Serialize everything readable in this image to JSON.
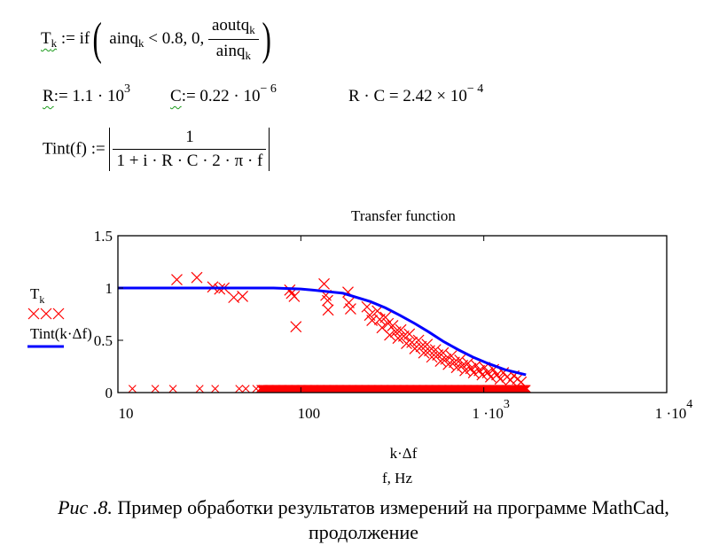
{
  "formulas": {
    "t_def": {
      "lhs": "T",
      "lhs_sub": "k",
      "assign": ":=",
      "func": "if",
      "cond_var": "ainq",
      "cond_sub": "k",
      "cond_op": "<",
      "cond_val": "0.8",
      "sep1": ",",
      "zero": "0",
      "sep2": ",",
      "num_var": "aoutq",
      "num_sub": "k",
      "den_var": "ainq",
      "den_sub": "k"
    },
    "r_def": {
      "name": "R",
      "rest": ":= 1.1 · 10",
      "exp": "3"
    },
    "c_def": {
      "name": "C",
      "rest": ":= 0.22 · 10",
      "exp": "− 6"
    },
    "rc_result": {
      "expr": "R · C = 2.42 × 10",
      "exp": "− 4"
    },
    "tint_def": {
      "lhs": "Tint(f) :=",
      "num": "1",
      "den": "1 + i · R · C · 2 · π · f"
    }
  },
  "chart_data": {
    "type": "scatter",
    "title": "Transfer function",
    "xlabel": "k·Δf",
    "xlabel2": "f, Hz",
    "xscale": "log",
    "xlim": [
      10,
      10000
    ],
    "ylim": [
      0,
      1.5
    ],
    "x_ticks": [
      {
        "value": 10,
        "label": "10",
        "exp": ""
      },
      {
        "value": 100,
        "label": "100",
        "exp": ""
      },
      {
        "value": 1000,
        "label": "1 ·10",
        "exp": "3"
      },
      {
        "value": 10000,
        "label": "1 ·10",
        "exp": "4"
      }
    ],
    "y_ticks": [
      {
        "value": 1.5,
        "label": "1.5"
      },
      {
        "value": 1,
        "label": "1"
      },
      {
        "value": 0.5,
        "label": "0.5"
      },
      {
        "value": 0,
        "label": "0"
      }
    ],
    "legend": {
      "placement": "left",
      "series1_name": "T",
      "series1_sub": "k",
      "series2_name": "Tint(k·Δf)"
    },
    "colors": {
      "scatter": "#ff0000",
      "line": "#0000ff"
    },
    "series": [
      {
        "name": "Tk",
        "kind": "scatter-x",
        "points": [
          [
            21,
            1.08
          ],
          [
            27,
            1.1
          ],
          [
            33,
            1.01
          ],
          [
            36,
            0.99
          ],
          [
            38,
            1.0
          ],
          [
            43,
            0.91
          ],
          [
            48,
            0.92
          ],
          [
            87,
            0.98
          ],
          [
            89,
            0.95
          ],
          [
            92,
            0.92
          ],
          [
            94,
            0.63
          ],
          [
            134,
            1.04
          ],
          [
            137,
            0.93
          ],
          [
            140,
            0.88
          ],
          [
            141,
            0.79
          ],
          [
            181,
            0.96
          ],
          [
            183,
            0.86
          ],
          [
            187,
            0.8
          ],
          [
            230,
            0.82
          ],
          [
            238,
            0.74
          ],
          [
            245,
            0.69
          ],
          [
            262,
            0.78
          ],
          [
            270,
            0.7
          ],
          [
            278,
            0.62
          ],
          [
            290,
            0.72
          ],
          [
            300,
            0.66
          ],
          [
            306,
            0.55
          ],
          [
            318,
            0.64
          ],
          [
            330,
            0.58
          ],
          [
            340,
            0.52
          ],
          [
            352,
            0.6
          ],
          [
            365,
            0.54
          ],
          [
            378,
            0.47
          ],
          [
            392,
            0.56
          ],
          [
            405,
            0.48
          ],
          [
            420,
            0.42
          ],
          [
            440,
            0.5
          ],
          [
            455,
            0.44
          ],
          [
            470,
            0.38
          ],
          [
            490,
            0.46
          ],
          [
            505,
            0.4
          ],
          [
            520,
            0.34
          ],
          [
            545,
            0.41
          ],
          [
            560,
            0.36
          ],
          [
            580,
            0.3
          ],
          [
            600,
            0.38
          ],
          [
            620,
            0.32
          ],
          [
            640,
            0.27
          ],
          [
            665,
            0.35
          ],
          [
            690,
            0.29
          ],
          [
            710,
            0.24
          ],
          [
            740,
            0.31
          ],
          [
            765,
            0.26
          ],
          [
            790,
            0.21
          ],
          [
            820,
            0.28
          ],
          [
            850,
            0.23
          ],
          [
            880,
            0.19
          ],
          [
            910,
            0.26
          ],
          [
            945,
            0.21
          ],
          [
            980,
            0.17
          ],
          [
            1010,
            0.24
          ],
          [
            1050,
            0.19
          ],
          [
            1090,
            0.15
          ],
          [
            1130,
            0.22
          ],
          [
            1180,
            0.17
          ],
          [
            1230,
            0.13
          ],
          [
            1280,
            0.19
          ],
          [
            1340,
            0.15
          ],
          [
            1400,
            0.12
          ],
          [
            1460,
            0.16
          ],
          [
            1530,
            0.13
          ],
          [
            1600,
            0.1
          ]
        ]
      },
      {
        "name": "Tk-zero",
        "kind": "scatter-x-small",
        "y": 0.02,
        "x": [
          12,
          16,
          20,
          28,
          34,
          46,
          50,
          57
        ],
        "dense_range": {
          "from": 60,
          "to": 1720,
          "count": 260
        }
      },
      {
        "name": "Tint(k·Δf)",
        "kind": "line",
        "points": [
          [
            10,
            1.0
          ],
          [
            71,
            1.0
          ],
          [
            100,
            0.99
          ],
          [
            117,
            0.98
          ],
          [
            170,
            0.95
          ],
          [
            240,
            0.87
          ],
          [
            290,
            0.81
          ],
          [
            347,
            0.74
          ],
          [
            420,
            0.66
          ],
          [
            500,
            0.58
          ],
          [
            600,
            0.49
          ],
          [
            725,
            0.41
          ],
          [
            870,
            0.34
          ],
          [
            1050,
            0.28
          ],
          [
            1300,
            0.22
          ],
          [
            1700,
            0.17
          ]
        ]
      }
    ]
  },
  "caption": {
    "prefix": "Рис .8.",
    "text": " Пример обработки результатов измерений на программе MathCad,",
    "line2": "продолжение"
  }
}
